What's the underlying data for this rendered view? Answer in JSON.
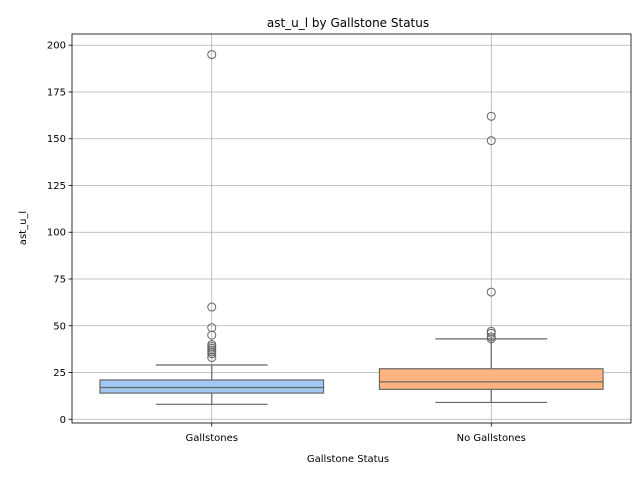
{
  "chart_data": {
    "type": "box",
    "title": "ast_u_l by Gallstone Status",
    "xlabel": "Gallstone Status",
    "ylabel": "ast_u_l",
    "ylim": [
      -2,
      206
    ],
    "yticks": [
      "0",
      "25",
      "50",
      "75",
      "100",
      "125",
      "150",
      "175",
      "200"
    ],
    "grid": true,
    "categories": [
      "Gallstones",
      "No Gallstones"
    ],
    "boxes": [
      {
        "name": "Gallstones",
        "color": "#a1c9f4",
        "whisker_low": 8,
        "q1": 14,
        "median": 17,
        "q3": 21,
        "whisker_high": 29,
        "outliers": [
          33,
          35,
          36,
          37,
          38,
          39,
          40,
          45,
          49,
          60,
          195
        ]
      },
      {
        "name": "No Gallstones",
        "color": "#ffb482",
        "whisker_low": 9,
        "q1": 16,
        "median": 20,
        "q3": 27,
        "whisker_high": 43,
        "outliers": [
          43,
          44,
          46,
          47,
          68,
          149,
          162
        ]
      }
    ]
  }
}
